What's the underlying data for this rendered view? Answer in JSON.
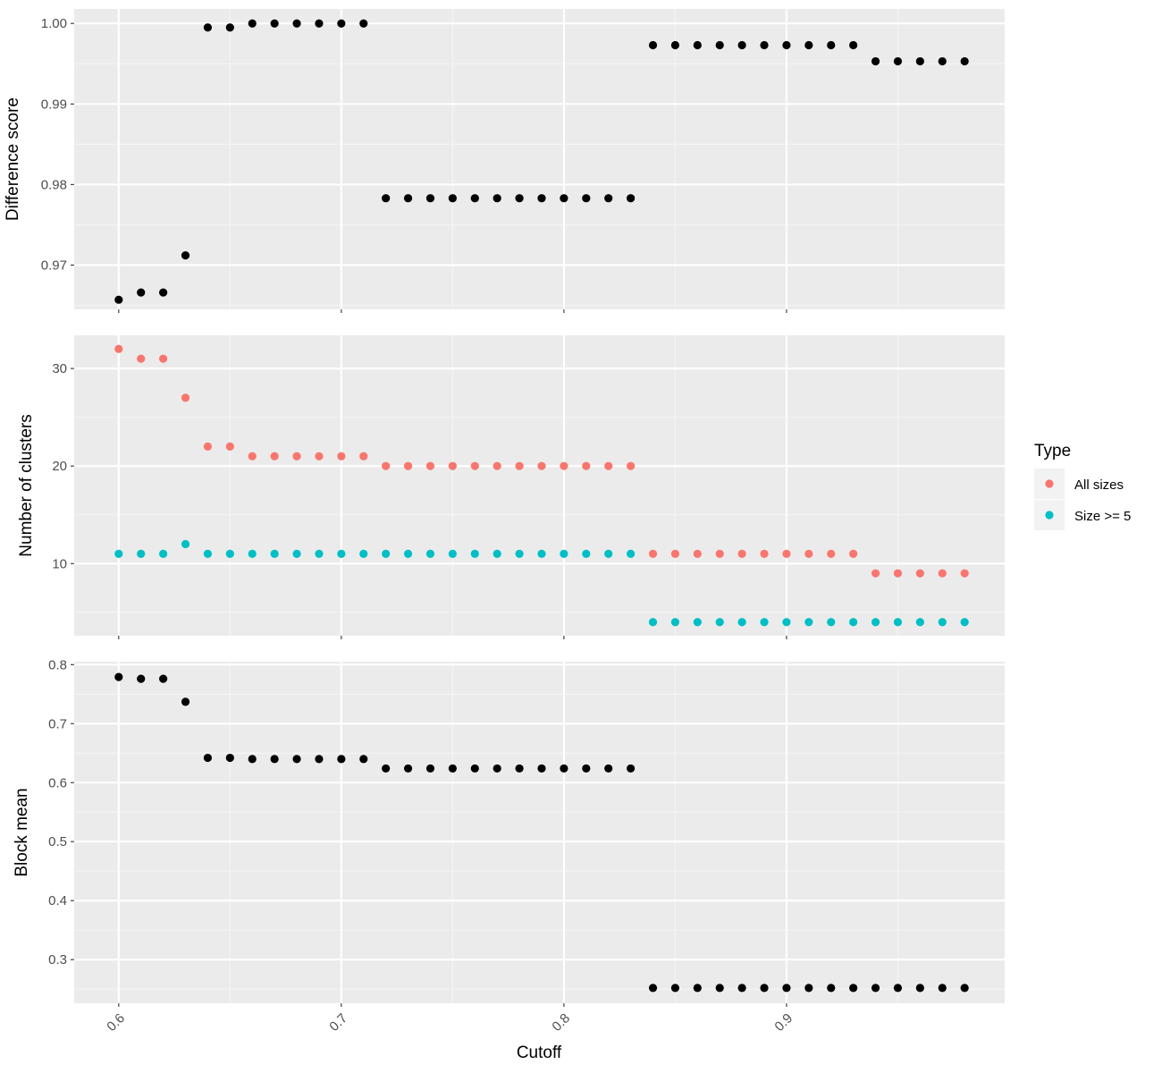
{
  "chart_data": [
    {
      "type": "scatter",
      "panel": "top",
      "xlabel": "",
      "ylabel": "Difference score",
      "xlim": [
        0.58,
        0.998
      ],
      "ylim": [
        0.9645,
        1.0018
      ],
      "y_ticks": [
        0.97,
        0.98,
        0.99,
        1.0
      ],
      "y_tick_labels": [
        "0.97",
        "0.98",
        "0.99",
        "1.00"
      ],
      "series": [
        {
          "color": "#000000",
          "x": [
            0.6,
            0.61,
            0.62,
            0.63,
            0.64,
            0.65,
            0.66,
            0.67,
            0.68,
            0.69,
            0.7,
            0.71,
            0.72,
            0.73,
            0.74,
            0.75,
            0.76,
            0.77,
            0.78,
            0.79,
            0.8,
            0.81,
            0.82,
            0.83,
            0.84,
            0.85,
            0.86,
            0.87,
            0.88,
            0.89,
            0.9,
            0.91,
            0.92,
            0.93,
            0.94,
            0.95,
            0.96,
            0.97,
            0.98
          ],
          "values": [
            0.9657,
            0.9666,
            0.9666,
            0.9712,
            0.9995,
            0.9995,
            1.0,
            1.0,
            1.0,
            1.0,
            1.0,
            1.0,
            0.9783,
            0.9783,
            0.9783,
            0.9783,
            0.9783,
            0.9783,
            0.9783,
            0.9783,
            0.9783,
            0.9783,
            0.9783,
            0.9783,
            0.9973,
            0.9973,
            0.9973,
            0.9973,
            0.9973,
            0.9973,
            0.9973,
            0.9973,
            0.9973,
            0.9973,
            0.9953,
            0.9953,
            0.9953,
            0.9953,
            0.9953
          ]
        }
      ]
    },
    {
      "type": "scatter",
      "panel": "middle",
      "xlabel": "",
      "ylabel": "Number of clusters",
      "xlim": [
        0.58,
        0.998
      ],
      "ylim": [
        2.6,
        33.4
      ],
      "y_ticks": [
        10,
        20,
        30
      ],
      "y_tick_labels": [
        "10",
        "20",
        "30"
      ],
      "series": [
        {
          "name": "All sizes",
          "color": "#F8766D",
          "x": [
            0.6,
            0.61,
            0.62,
            0.63,
            0.64,
            0.65,
            0.66,
            0.67,
            0.68,
            0.69,
            0.7,
            0.71,
            0.72,
            0.73,
            0.74,
            0.75,
            0.76,
            0.77,
            0.78,
            0.79,
            0.8,
            0.81,
            0.82,
            0.83,
            0.84,
            0.85,
            0.86,
            0.87,
            0.88,
            0.89,
            0.9,
            0.91,
            0.92,
            0.93,
            0.94,
            0.95,
            0.96,
            0.97,
            0.98
          ],
          "values": [
            32,
            31,
            31,
            27,
            22,
            22,
            21,
            21,
            21,
            21,
            21,
            21,
            20,
            20,
            20,
            20,
            20,
            20,
            20,
            20,
            20,
            20,
            20,
            20,
            11,
            11,
            11,
            11,
            11,
            11,
            11,
            11,
            11,
            11,
            9,
            9,
            9,
            9,
            9
          ]
        },
        {
          "name": "Size >= 5",
          "color": "#00BFC4",
          "x": [
            0.6,
            0.61,
            0.62,
            0.63,
            0.64,
            0.65,
            0.66,
            0.67,
            0.68,
            0.69,
            0.7,
            0.71,
            0.72,
            0.73,
            0.74,
            0.75,
            0.76,
            0.77,
            0.78,
            0.79,
            0.8,
            0.81,
            0.82,
            0.83,
            0.84,
            0.85,
            0.86,
            0.87,
            0.88,
            0.89,
            0.9,
            0.91,
            0.92,
            0.93,
            0.94,
            0.95,
            0.96,
            0.97,
            0.98
          ],
          "values": [
            11,
            11,
            11,
            12,
            11,
            11,
            11,
            11,
            11,
            11,
            11,
            11,
            11,
            11,
            11,
            11,
            11,
            11,
            11,
            11,
            11,
            11,
            11,
            11,
            4,
            4,
            4,
            4,
            4,
            4,
            4,
            4,
            4,
            4,
            4,
            4,
            4,
            4,
            4
          ]
        }
      ]
    },
    {
      "type": "scatter",
      "panel": "bottom",
      "xlabel": "Cutoff",
      "ylabel": "Block mean",
      "xlim": [
        0.58,
        0.998
      ],
      "ylim": [
        0.226,
        0.805
      ],
      "y_ticks": [
        0.3,
        0.4,
        0.5,
        0.6,
        0.7,
        0.8
      ],
      "y_tick_labels": [
        "0.3",
        "0.4",
        "0.5",
        "0.6",
        "0.7",
        "0.8"
      ],
      "x_ticks": [
        0.6,
        0.7,
        0.8,
        0.9
      ],
      "x_tick_labels": [
        "0.6",
        "0.7",
        "0.8",
        "0.9"
      ],
      "series": [
        {
          "color": "#000000",
          "x": [
            0.6,
            0.61,
            0.62,
            0.63,
            0.64,
            0.65,
            0.66,
            0.67,
            0.68,
            0.69,
            0.7,
            0.71,
            0.72,
            0.73,
            0.74,
            0.75,
            0.76,
            0.77,
            0.78,
            0.79,
            0.8,
            0.81,
            0.82,
            0.83,
            0.84,
            0.85,
            0.86,
            0.87,
            0.88,
            0.89,
            0.9,
            0.91,
            0.92,
            0.93,
            0.94,
            0.95,
            0.96,
            0.97,
            0.98
          ],
          "values": [
            0.779,
            0.776,
            0.776,
            0.737,
            0.642,
            0.642,
            0.64,
            0.64,
            0.64,
            0.64,
            0.64,
            0.64,
            0.624,
            0.624,
            0.624,
            0.624,
            0.624,
            0.624,
            0.624,
            0.624,
            0.624,
            0.624,
            0.624,
            0.624,
            0.252,
            0.252,
            0.252,
            0.252,
            0.252,
            0.252,
            0.252,
            0.252,
            0.252,
            0.252,
            0.252,
            0.252,
            0.252,
            0.252,
            0.252
          ]
        }
      ]
    }
  ],
  "legend": {
    "title": "Type",
    "items": [
      {
        "label": "All sizes",
        "color": "#F8766D"
      },
      {
        "label": "Size >= 5",
        "color": "#00BFC4"
      }
    ]
  },
  "colors": {
    "panel_background": "#EBEBEB",
    "grid_major": "#FFFFFF",
    "grid_minor": "#F5F5F5",
    "tick_text": "#4D4D4D"
  }
}
